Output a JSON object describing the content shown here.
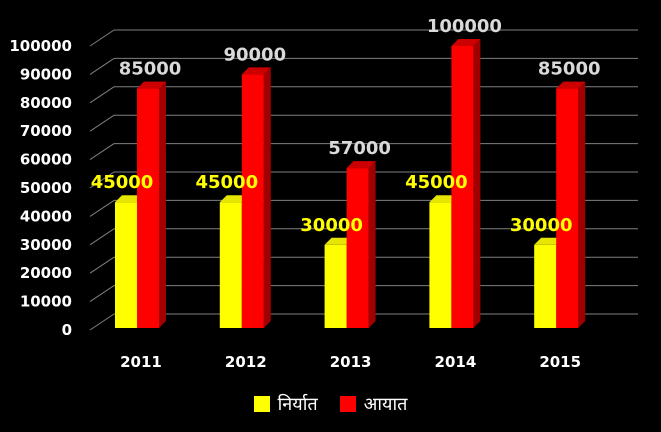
{
  "chart_data": {
    "type": "bar",
    "categories": [
      "2011",
      "2012",
      "2013",
      "2014",
      "2015"
    ],
    "series": [
      {
        "name": "निर्यात",
        "values": [
          45000,
          45000,
          30000,
          45000,
          30000
        ],
        "color": "#ffff00",
        "label_color": "#ffff00"
      },
      {
        "name": "आयात",
        "values": [
          85000,
          90000,
          57000,
          100000,
          85000
        ],
        "color": "#ff0000",
        "label_color": "#d9d9d9"
      }
    ],
    "value_labels": {
      "export": [
        "45000",
        "45000",
        "30000",
        "45000",
        "30000"
      ],
      "import": [
        "85000",
        "90000",
        "57000",
        "100000",
        "85000"
      ]
    },
    "ylim": [
      0,
      100000
    ],
    "yticks": [
      "0",
      "10000",
      "20000",
      "30000",
      "40000",
      "50000",
      "60000",
      "70000",
      "80000",
      "90000",
      "100000"
    ],
    "grid": true,
    "legend_position": "bottom",
    "background": "#000000"
  },
  "legend": {
    "export_label": "निर्यात",
    "import_label": "आयात"
  }
}
